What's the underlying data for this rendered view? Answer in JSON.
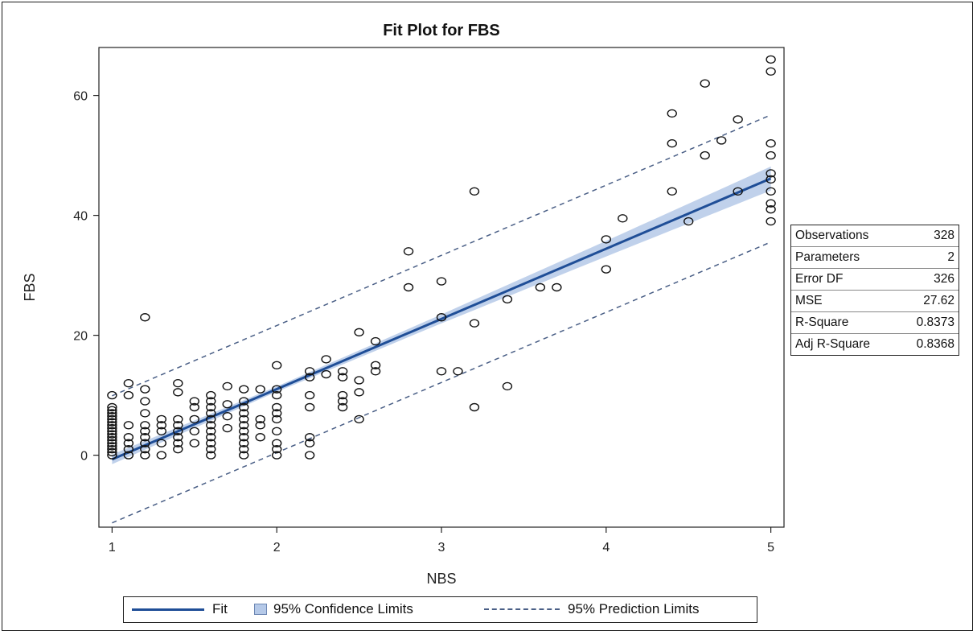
{
  "chart_data": {
    "type": "scatter",
    "title": "Fit Plot for FBS",
    "xlabel": "NBS",
    "ylabel": "FBS",
    "xlim": [
      0.92,
      5.08
    ],
    "ylim": [
      -12,
      68
    ],
    "xticks": [
      1,
      2,
      3,
      4,
      5
    ],
    "yticks": [
      0,
      20,
      40,
      60
    ],
    "fit": {
      "intercept": -12.4,
      "slope": 11.71
    },
    "confidence_band_halfwidth": {
      "at_x1": 0.8,
      "at_x2": 0.45,
      "at_x3": 0.75,
      "at_x4": 1.3,
      "at_x5": 2.0
    },
    "prediction_offset": 10.6,
    "points": [
      [
        1,
        0
      ],
      [
        1,
        0.5
      ],
      [
        1,
        1
      ],
      [
        1,
        1.5
      ],
      [
        1,
        2
      ],
      [
        1,
        2.5
      ],
      [
        1,
        3
      ],
      [
        1,
        3.5
      ],
      [
        1,
        4
      ],
      [
        1,
        4.5
      ],
      [
        1,
        5
      ],
      [
        1,
        5.5
      ],
      [
        1,
        6
      ],
      [
        1,
        6.5
      ],
      [
        1,
        7
      ],
      [
        1,
        7.5
      ],
      [
        1,
        8
      ],
      [
        1,
        10
      ],
      [
        1.1,
        0
      ],
      [
        1.1,
        1
      ],
      [
        1.1,
        2
      ],
      [
        1.1,
        3
      ],
      [
        1.1,
        5
      ],
      [
        1.1,
        10
      ],
      [
        1.1,
        12
      ],
      [
        1.2,
        0
      ],
      [
        1.2,
        1
      ],
      [
        1.2,
        2
      ],
      [
        1.2,
        3
      ],
      [
        1.2,
        4
      ],
      [
        1.2,
        5
      ],
      [
        1.2,
        7
      ],
      [
        1.2,
        9
      ],
      [
        1.2,
        11
      ],
      [
        1.2,
        23
      ],
      [
        1.3,
        0
      ],
      [
        1.3,
        2
      ],
      [
        1.3,
        4
      ],
      [
        1.3,
        5
      ],
      [
        1.3,
        6
      ],
      [
        1.4,
        1
      ],
      [
        1.4,
        2
      ],
      [
        1.4,
        3
      ],
      [
        1.4,
        4
      ],
      [
        1.4,
        5
      ],
      [
        1.4,
        6
      ],
      [
        1.4,
        10.5
      ],
      [
        1.4,
        12
      ],
      [
        1.5,
        2
      ],
      [
        1.5,
        4
      ],
      [
        1.5,
        6
      ],
      [
        1.5,
        8
      ],
      [
        1.5,
        9
      ],
      [
        1.6,
        0
      ],
      [
        1.6,
        1
      ],
      [
        1.6,
        2
      ],
      [
        1.6,
        3
      ],
      [
        1.6,
        4
      ],
      [
        1.6,
        5
      ],
      [
        1.6,
        6
      ],
      [
        1.6,
        7
      ],
      [
        1.6,
        8
      ],
      [
        1.6,
        9
      ],
      [
        1.6,
        10
      ],
      [
        1.7,
        4.5
      ],
      [
        1.7,
        6.5
      ],
      [
        1.7,
        8.5
      ],
      [
        1.7,
        11.5
      ],
      [
        1.8,
        0
      ],
      [
        1.8,
        1
      ],
      [
        1.8,
        2
      ],
      [
        1.8,
        3
      ],
      [
        1.8,
        4
      ],
      [
        1.8,
        5
      ],
      [
        1.8,
        6
      ],
      [
        1.8,
        7
      ],
      [
        1.8,
        8
      ],
      [
        1.8,
        9
      ],
      [
        1.8,
        11
      ],
      [
        1.9,
        3
      ],
      [
        1.9,
        5
      ],
      [
        1.9,
        6
      ],
      [
        1.9,
        11
      ],
      [
        2,
        0
      ],
      [
        2,
        1
      ],
      [
        2,
        2
      ],
      [
        2,
        4
      ],
      [
        2,
        6
      ],
      [
        2,
        7
      ],
      [
        2,
        8
      ],
      [
        2,
        10
      ],
      [
        2,
        11
      ],
      [
        2,
        15
      ],
      [
        2.2,
        0
      ],
      [
        2.2,
        2
      ],
      [
        2.2,
        3
      ],
      [
        2.2,
        8
      ],
      [
        2.2,
        10
      ],
      [
        2.2,
        13
      ],
      [
        2.2,
        14
      ],
      [
        2.3,
        13.5
      ],
      [
        2.3,
        16
      ],
      [
        2.4,
        8
      ],
      [
        2.4,
        9
      ],
      [
        2.4,
        10
      ],
      [
        2.4,
        13
      ],
      [
        2.4,
        14
      ],
      [
        2.5,
        6
      ],
      [
        2.5,
        10.5
      ],
      [
        2.5,
        12.5
      ],
      [
        2.5,
        20.5
      ],
      [
        2.6,
        14
      ],
      [
        2.6,
        15
      ],
      [
        2.6,
        19
      ],
      [
        2.8,
        28
      ],
      [
        2.8,
        34
      ],
      [
        3,
        14
      ],
      [
        3,
        23
      ],
      [
        3,
        29
      ],
      [
        3.1,
        14
      ],
      [
        3.2,
        8
      ],
      [
        3.2,
        22
      ],
      [
        3.2,
        44
      ],
      [
        3.4,
        11.5
      ],
      [
        3.4,
        26
      ],
      [
        3.6,
        28
      ],
      [
        3.7,
        28
      ],
      [
        4,
        31
      ],
      [
        4,
        36
      ],
      [
        4.1,
        39.5
      ],
      [
        4.4,
        44
      ],
      [
        4.4,
        52
      ],
      [
        4.4,
        57
      ],
      [
        4.5,
        39
      ],
      [
        4.6,
        50
      ],
      [
        4.6,
        62
      ],
      [
        4.7,
        52.5
      ],
      [
        4.8,
        44
      ],
      [
        4.8,
        56
      ],
      [
        5,
        39
      ],
      [
        5,
        41
      ],
      [
        5,
        42
      ],
      [
        5,
        44
      ],
      [
        5,
        46
      ],
      [
        5,
        47
      ],
      [
        5,
        50
      ],
      [
        5,
        52
      ],
      [
        5,
        64
      ],
      [
        5,
        66
      ]
    ]
  },
  "stats": [
    {
      "label": "Observations",
      "value": "328"
    },
    {
      "label": "Parameters",
      "value": "2"
    },
    {
      "label": "Error DF",
      "value": "326"
    },
    {
      "label": "MSE",
      "value": "27.62"
    },
    {
      "label": "R-Square",
      "value": "0.8373"
    },
    {
      "label": "Adj R-Square",
      "value": "0.8368"
    }
  ],
  "legend": {
    "fit": "Fit",
    "confidence": "95% Confidence Limits",
    "prediction": "95% Prediction Limits"
  },
  "colors": {
    "fit": "#1f4e97",
    "band": "#b5c9e8",
    "prediction": "#4a5f86",
    "marker": "#111111"
  }
}
